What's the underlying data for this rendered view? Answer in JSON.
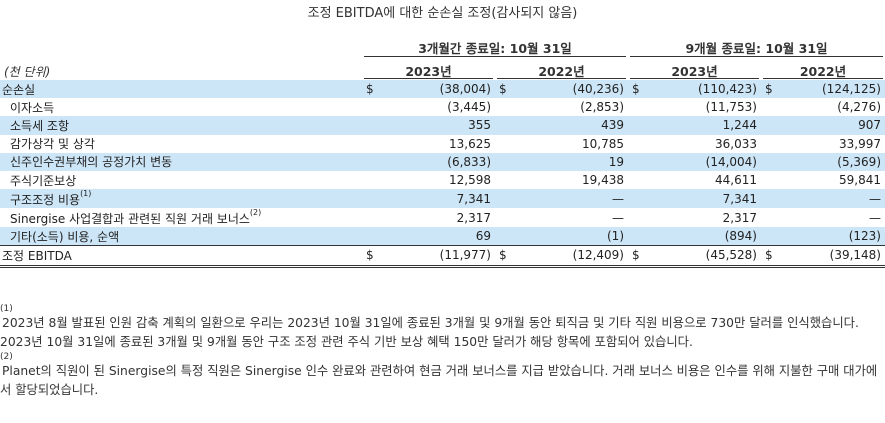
{
  "title": "조정 EBITDA에 대한 순손실 조정(감사되지 않음)",
  "groups": [
    "3개월간 종료일: 10월 31일",
    "9개월 종료일: 10월 31일"
  ],
  "unit_label": "(천 단위)",
  "years": [
    "2023년",
    "2022년",
    "2023년",
    "2022년"
  ],
  "currency": "$",
  "rows": [
    {
      "label": "순손실",
      "sup": "",
      "values": [
        "(38,004)",
        "(40,236)",
        "(110,423)",
        "(124,125)"
      ]
    },
    {
      "label": "이자소득",
      "sup": "",
      "values": [
        "(3,445)",
        "(2,853)",
        "(11,753)",
        "(4,276)"
      ]
    },
    {
      "label": "소득세 조항",
      "sup": "",
      "values": [
        "355",
        "439",
        "1,244",
        "907"
      ]
    },
    {
      "label": "감가상각 및 상각",
      "sup": "",
      "values": [
        "13,625",
        "10,785",
        "36,033",
        "33,997"
      ]
    },
    {
      "label": "신주인수권부채의 공정가치 변동",
      "sup": "",
      "values": [
        "(6,833)",
        "19",
        "(14,004)",
        "(5,369)"
      ]
    },
    {
      "label": "주식기준보상",
      "sup": "",
      "values": [
        "12,598",
        "19,438",
        "44,611",
        "59,841"
      ]
    },
    {
      "label": "구조조정 비용",
      "sup": "(1)",
      "values": [
        "7,341",
        "—",
        "7,341",
        "—"
      ]
    },
    {
      "label": "Sinergise 사업결합과 관련된 직원 거래 보너스",
      "sup": "(2)",
      "values": [
        "2,317",
        "—",
        "2,317",
        "—"
      ]
    },
    {
      "label": "기타(소득) 비용, 순액",
      "sup": "",
      "values": [
        "69",
        "(1)",
        "(894)",
        "(123)"
      ]
    },
    {
      "label": "조정 EBITDA",
      "sup": "",
      "values": [
        "(11,977)",
        "(12,409)",
        "(45,528)",
        "(39,148)"
      ]
    }
  ],
  "footnotes": [
    {
      "mark": "(1)",
      "text": "2023년 8월 발표된 인원 감축 계획의 일환으로 우리는 2023년 10월 31일에 종료된 3개월 및 9개월 동안 퇴직금 및 기타 직원 비용으로 730만 달러를 인식했습니다. 2023년 10월 31일에 종료된 3개월 및 9개월 동안 구조 조정 관련 주식 기반 보상 혜택 150만 달러가 해당 항목에 포함되어 있습니다."
    },
    {
      "mark": "(2)",
      "text": "Planet의 직원이 된 Sinergise의 특정 직원은 Sinergise 인수 완료와 관련하여 현금 거래 보너스를 지급 받았습니다. 거래 보너스 비용은 인수를 위해 지불한 구매 대가에서 할당되었습니다."
    }
  ]
}
